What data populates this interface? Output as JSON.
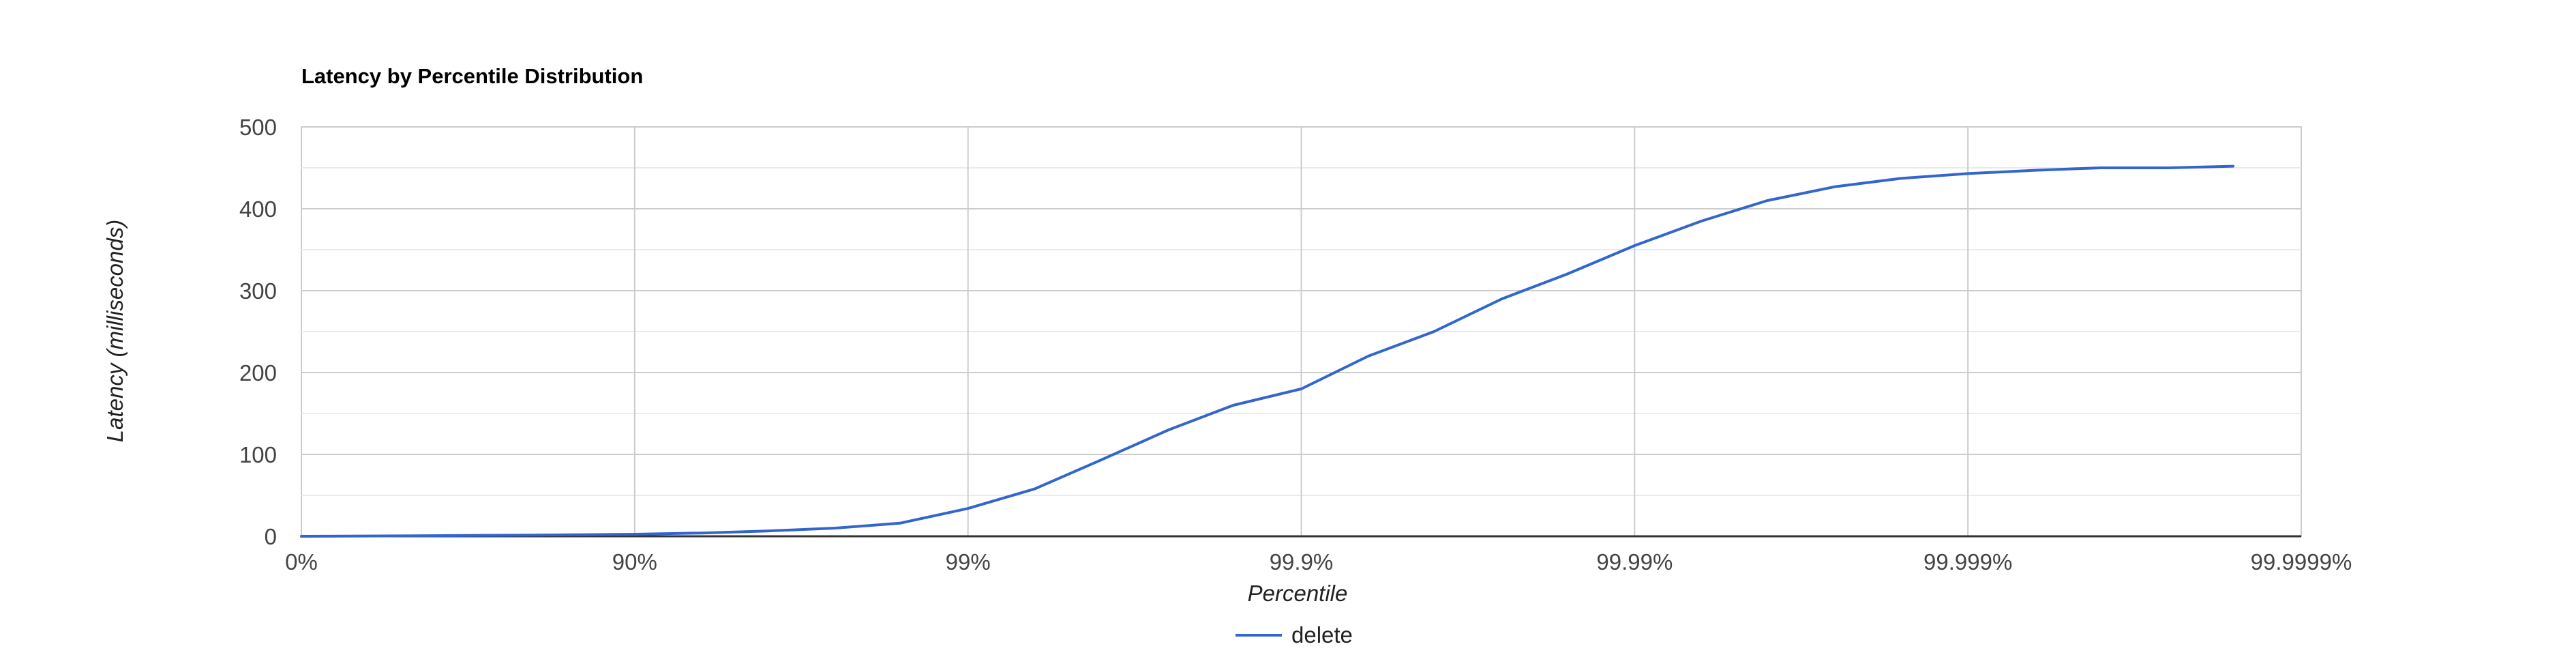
{
  "chart_data": {
    "type": "line",
    "title": "Latency by Percentile Distribution",
    "xlabel": "Percentile",
    "ylabel": "Latency (milliseconds)",
    "x_scale": "log-percentile",
    "x_ticks": [
      "0%",
      "90%",
      "99%",
      "99.9%",
      "99.99%",
      "99.999%",
      "99.9999%"
    ],
    "x_tick_values": [
      0,
      90,
      99,
      99.9,
      99.99,
      99.999,
      99.9999
    ],
    "y_ticks": [
      "0",
      "100",
      "200",
      "300",
      "400",
      "500"
    ],
    "y_tick_values": [
      0,
      100,
      200,
      300,
      400,
      500
    ],
    "ylim": [
      0,
      500
    ],
    "grid": true,
    "legend_position": "bottom",
    "series": [
      {
        "name": "delete",
        "color": "#3366cc",
        "points": [
          [
            0,
            0
          ],
          [
            50,
            0.5
          ],
          [
            68.4,
            1
          ],
          [
            80,
            1.5
          ],
          [
            90,
            2.5
          ],
          [
            93.7,
            4
          ],
          [
            96,
            6.5
          ],
          [
            97.5,
            10
          ],
          [
            98.4,
            16
          ],
          [
            99,
            34
          ],
          [
            99.37,
            58
          ],
          [
            99.6,
            93
          ],
          [
            99.75,
            130
          ],
          [
            99.84,
            160
          ],
          [
            99.9,
            180
          ],
          [
            99.937,
            220
          ],
          [
            99.96,
            250
          ],
          [
            99.975,
            290
          ],
          [
            99.984,
            320
          ],
          [
            99.99,
            355
          ],
          [
            99.9937,
            385
          ],
          [
            99.996,
            410
          ],
          [
            99.9975,
            427
          ],
          [
            99.9984,
            437
          ],
          [
            99.999,
            443
          ],
          [
            99.99937,
            447
          ],
          [
            99.9996,
            450
          ],
          [
            99.99975,
            450
          ],
          [
            99.99984,
            452
          ]
        ]
      }
    ]
  }
}
